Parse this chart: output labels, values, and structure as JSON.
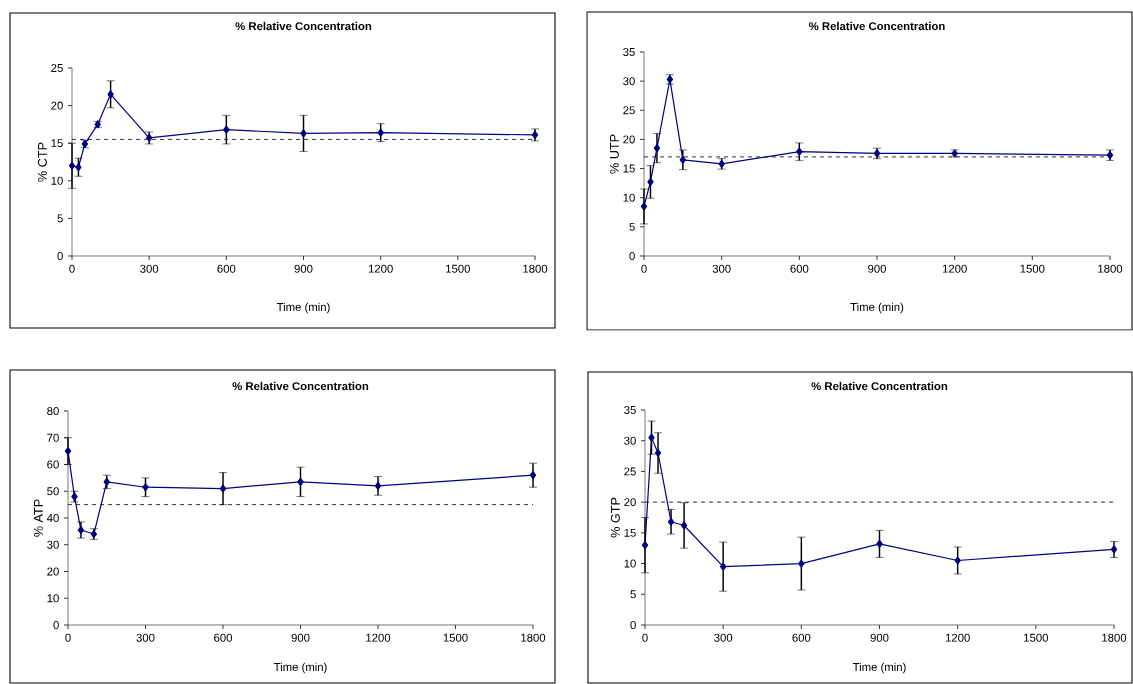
{
  "chart_data": [
    {
      "type": "line",
      "title": "% Relative Concentration",
      "xlabel": "Time (min)",
      "ylabel": "% CTP",
      "color": "#000080",
      "marker": "diamond",
      "line_style": "solid",
      "x": [
        0,
        25,
        50,
        100,
        150,
        300,
        600,
        900,
        1200,
        1800
      ],
      "values": [
        12,
        11.8,
        14.9,
        17.5,
        21.5,
        15.7,
        16.8,
        16.3,
        16.4,
        16.1
      ],
      "errors": [
        3,
        1.2,
        0.5,
        0.4,
        1.8,
        0.8,
        1.9,
        2.4,
        1.2,
        0.8
      ],
      "xlim": [
        0,
        1800
      ],
      "xticks": [
        0,
        300,
        600,
        900,
        1200,
        1500,
        1800
      ],
      "ylim": [
        0,
        25
      ],
      "yticks": [
        0,
        5,
        10,
        15,
        20,
        25
      ],
      "ref_lines": [
        {
          "axis": "y",
          "value": 15.5,
          "color": "#000000",
          "line_style": "dashed"
        }
      ]
    },
    {
      "type": "line",
      "title": "% Relative Concentration",
      "xlabel": "Time (min)",
      "ylabel": "% UTP",
      "color": "#000080",
      "marker": "diamond",
      "line_style": "solid",
      "x": [
        0,
        25,
        50,
        100,
        150,
        300,
        600,
        900,
        1200,
        1800
      ],
      "values": [
        8.5,
        12.7,
        18.5,
        30.3,
        16.5,
        15.8,
        17.9,
        17.6,
        17.6,
        17.3
      ],
      "errors": [
        3,
        2.8,
        2.5,
        0.8,
        1.7,
        0.9,
        1.5,
        0.9,
        0.6,
        0.9
      ],
      "xlim": [
        0,
        1800
      ],
      "xticks": [
        0,
        300,
        600,
        900,
        1200,
        1500,
        1800
      ],
      "ylim": [
        0,
        35
      ],
      "yticks": [
        0,
        5,
        10,
        15,
        20,
        25,
        30,
        35
      ],
      "ref_lines": [
        {
          "axis": "y",
          "value": 17,
          "color": "#000000",
          "line_style": "dashed"
        }
      ]
    },
    {
      "type": "line",
      "title": "% Relative Concentration",
      "xlabel": "Time (min)",
      "ylabel": "% ATP",
      "color": "#000080",
      "marker": "diamond",
      "line_style": "solid",
      "x": [
        0,
        25,
        50,
        100,
        150,
        300,
        600,
        900,
        1200,
        1800
      ],
      "values": [
        65,
        48,
        35.5,
        34,
        53.5,
        51.5,
        51,
        53.5,
        52,
        56
      ],
      "errors": [
        5,
        2,
        3,
        2,
        2.5,
        3.5,
        6,
        5.5,
        3.5,
        4.5
      ],
      "xlim": [
        0,
        1800
      ],
      "xticks": [
        0,
        300,
        600,
        900,
        1200,
        1500,
        1800
      ],
      "ylim": [
        0,
        80
      ],
      "yticks": [
        0,
        10,
        20,
        30,
        40,
        50,
        60,
        70,
        80
      ],
      "ref_lines": [
        {
          "axis": "y",
          "value": 45,
          "color": "#000000",
          "line_style": "dashed"
        }
      ]
    },
    {
      "type": "line",
      "title": "% Relative Concentration",
      "xlabel": "Time (min)",
      "ylabel": "% GTP",
      "color": "#000080",
      "marker": "diamond",
      "line_style": "solid",
      "x": [
        0,
        25,
        50,
        100,
        150,
        300,
        600,
        900,
        1200,
        1800
      ],
      "values": [
        13,
        30.5,
        28,
        16.8,
        16.2,
        9.5,
        10,
        13.2,
        10.5,
        12.3
      ],
      "errors": [
        4.5,
        2.7,
        3.3,
        2,
        3.7,
        4,
        4.3,
        2.2,
        2.2,
        1.3
      ],
      "xlim": [
        0,
        1800
      ],
      "xticks": [
        0,
        300,
        600,
        900,
        1200,
        1500,
        1800
      ],
      "ylim": [
        0,
        35
      ],
      "yticks": [
        0,
        5,
        10,
        15,
        20,
        25,
        30,
        35
      ],
      "ref_lines": [
        {
          "axis": "y",
          "value": 20,
          "color": "#000000",
          "line_style": "dashed"
        }
      ]
    }
  ]
}
